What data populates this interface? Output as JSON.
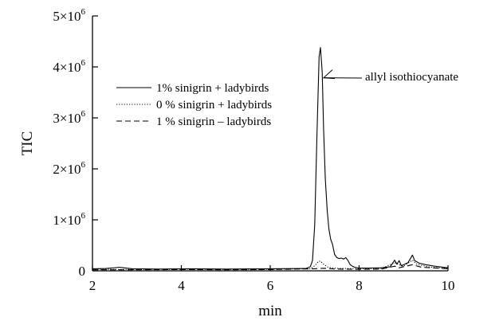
{
  "chart_data": {
    "type": "line",
    "xlabel": "min",
    "ylabel": "TIC",
    "xlim": [
      2,
      10
    ],
    "ylim": [
      0,
      5000000
    ],
    "x_ticks": [
      {
        "value": 2,
        "label": "2"
      },
      {
        "value": 4,
        "label": "4"
      },
      {
        "value": 6,
        "label": "6"
      },
      {
        "value": 8,
        "label": "8"
      },
      {
        "value": 10,
        "label": "10"
      }
    ],
    "y_ticks": [
      {
        "value": 0,
        "label": "0",
        "base": "0",
        "exp": ""
      },
      {
        "value": 1000000,
        "label": "1×10^6",
        "base": "1×10",
        "exp": "6"
      },
      {
        "value": 2000000,
        "label": "2×10^6",
        "base": "2×10",
        "exp": "6"
      },
      {
        "value": 3000000,
        "label": "3×10^6",
        "base": "3×10",
        "exp": "6"
      },
      {
        "value": 4000000,
        "label": "4×10^6",
        "base": "4×10",
        "exp": "6"
      },
      {
        "value": 5000000,
        "label": "5×10^6",
        "base": "5×10",
        "exp": "6"
      }
    ],
    "grid": false,
    "legend_position": "upper-left",
    "series": [
      {
        "name": "1% sinigrin + ladybirds",
        "style": "solid",
        "points": [
          [
            2.0,
            40000
          ],
          [
            2.3,
            45000
          ],
          [
            2.5,
            60000
          ],
          [
            2.6,
            70000
          ],
          [
            2.7,
            60000
          ],
          [
            2.9,
            40000
          ],
          [
            3.5,
            35000
          ],
          [
            4.2,
            40000
          ],
          [
            5.0,
            35000
          ],
          [
            6.0,
            40000
          ],
          [
            6.8,
            45000
          ],
          [
            6.9,
            80000
          ],
          [
            6.95,
            200000
          ],
          [
            7.0,
            900000
          ],
          [
            7.05,
            2600000
          ],
          [
            7.1,
            4200000
          ],
          [
            7.13,
            4380000
          ],
          [
            7.17,
            3900000
          ],
          [
            7.2,
            2800000
          ],
          [
            7.24,
            1800000
          ],
          [
            7.28,
            1200000
          ],
          [
            7.32,
            820000
          ],
          [
            7.36,
            620000
          ],
          [
            7.4,
            520000
          ],
          [
            7.45,
            320000
          ],
          [
            7.5,
            260000
          ],
          [
            7.55,
            240000
          ],
          [
            7.6,
            250000
          ],
          [
            7.65,
            230000
          ],
          [
            7.7,
            260000
          ],
          [
            7.75,
            200000
          ],
          [
            7.8,
            120000
          ],
          [
            7.85,
            90000
          ],
          [
            7.9,
            70000
          ],
          [
            8.0,
            55000
          ],
          [
            8.2,
            55000
          ],
          [
            8.5,
            60000
          ],
          [
            8.7,
            80000
          ],
          [
            8.8,
            210000
          ],
          [
            8.85,
            130000
          ],
          [
            8.9,
            200000
          ],
          [
            8.95,
            100000
          ],
          [
            9.1,
            160000
          ],
          [
            9.2,
            310000
          ],
          [
            9.25,
            200000
          ],
          [
            9.35,
            150000
          ],
          [
            9.5,
            120000
          ],
          [
            9.7,
            90000
          ],
          [
            9.9,
            70000
          ],
          [
            10.0,
            60000
          ]
        ]
      },
      {
        "name": "0 % sinigrin + ladybirds",
        "style": "dotted",
        "points": [
          [
            2.0,
            30000
          ],
          [
            3.0,
            25000
          ],
          [
            4.0,
            30000
          ],
          [
            5.0,
            25000
          ],
          [
            6.0,
            30000
          ],
          [
            6.9,
            40000
          ],
          [
            7.0,
            100000
          ],
          [
            7.08,
            180000
          ],
          [
            7.13,
            190000
          ],
          [
            7.2,
            130000
          ],
          [
            7.3,
            70000
          ],
          [
            7.5,
            50000
          ],
          [
            8.0,
            40000
          ],
          [
            8.5,
            45000
          ],
          [
            8.8,
            160000
          ],
          [
            8.9,
            120000
          ],
          [
            9.0,
            90000
          ],
          [
            9.2,
            210000
          ],
          [
            9.3,
            130000
          ],
          [
            9.6,
            70000
          ],
          [
            10.0,
            50000
          ]
        ]
      },
      {
        "name": "1 % sinigrin – ladybirds",
        "style": "dashed",
        "points": [
          [
            2.0,
            20000
          ],
          [
            3.0,
            20000
          ],
          [
            4.0,
            25000
          ],
          [
            5.0,
            20000
          ],
          [
            6.0,
            25000
          ],
          [
            7.0,
            40000
          ],
          [
            7.2,
            50000
          ],
          [
            7.5,
            35000
          ],
          [
            8.0,
            30000
          ],
          [
            8.5,
            35000
          ],
          [
            8.8,
            90000
          ],
          [
            8.9,
            60000
          ],
          [
            9.2,
            120000
          ],
          [
            9.4,
            70000
          ],
          [
            10.0,
            40000
          ]
        ]
      }
    ],
    "annotations": [
      {
        "text": "allyl isothiocyanate",
        "x": 7.13,
        "y": 4380000
      }
    ]
  }
}
